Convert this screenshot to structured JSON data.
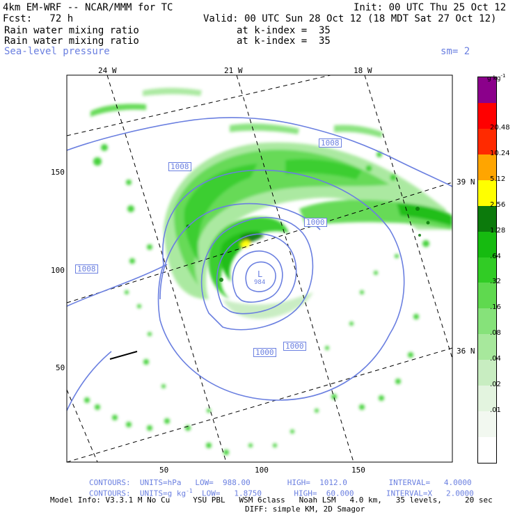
{
  "header": {
    "model_title": "4km EM-WRF -- NCAR/MMM for TC",
    "init_time": "Init: 00 UTC Thu 25 Oct 12",
    "forecast": "Fcst:   72 h",
    "valid_time": "Valid: 00 UTC Sun 28 Oct 12 (18 MDT Sat 27 Oct 12)",
    "field1_name": "Rain water mixing ratio",
    "field1_level": "at k-index =  35",
    "field2_name": "Rain water mixing ratio",
    "field2_level": "at k-index =  35",
    "field3_name": "Sea-level pressure",
    "smoothing": "sm= 2"
  },
  "map": {
    "top_labels": [
      "24 W",
      "21 W",
      "18 W"
    ],
    "right_labels": [
      "39 N",
      "36 N"
    ],
    "y_ticks": [
      "150",
      "100",
      "50"
    ],
    "x_ticks": [
      "50",
      "100",
      "150"
    ],
    "isobar_labels": [
      "1008",
      "1008",
      "1008",
      "1000",
      "1000",
      "1000"
    ],
    "low_symbol": "L",
    "low_value": "984",
    "line_color": "#6a7fe0"
  },
  "colorbar": {
    "units": "g kg",
    "units_sup": "-1",
    "labels": [
      "20.48",
      "10.24",
      "5.12",
      "2.56",
      "1.28",
      ".64",
      ".32",
      ".16",
      ".08",
      ".04",
      ".02",
      ".01"
    ],
    "colors": [
      "#ffffff",
      "#f2f8f0",
      "#e3f4df",
      "#c8edc1",
      "#a7e89c",
      "#86e27a",
      "#5fd94f",
      "#31cc25",
      "#16bb10",
      "#0c7a0c",
      "#ffff00",
      "#ffa500",
      "#ff2a00",
      "#ff0000",
      "#8b008b"
    ]
  },
  "footer": {
    "contours1": "CONTOURS:  UNITS=hPa   LOW=  988.00        HIGH=  1012.0         INTERVAL=   4.0000",
    "contours2": "CONTOURS:  UNITS=g kg",
    "contours2_sup": "-1",
    "contours2_rest": "  LOW=   1.8750       HIGH=  60.000       INTERVAL=X   2.0000",
    "model_info": "Model Info: V3.3.1 M No Cu     YSU PBL   WSM 6class   Noah LSM   4.0 km,   35 levels,     20 sec",
    "diff_info": "DIFF: simple KM, 2D Smagor"
  }
}
